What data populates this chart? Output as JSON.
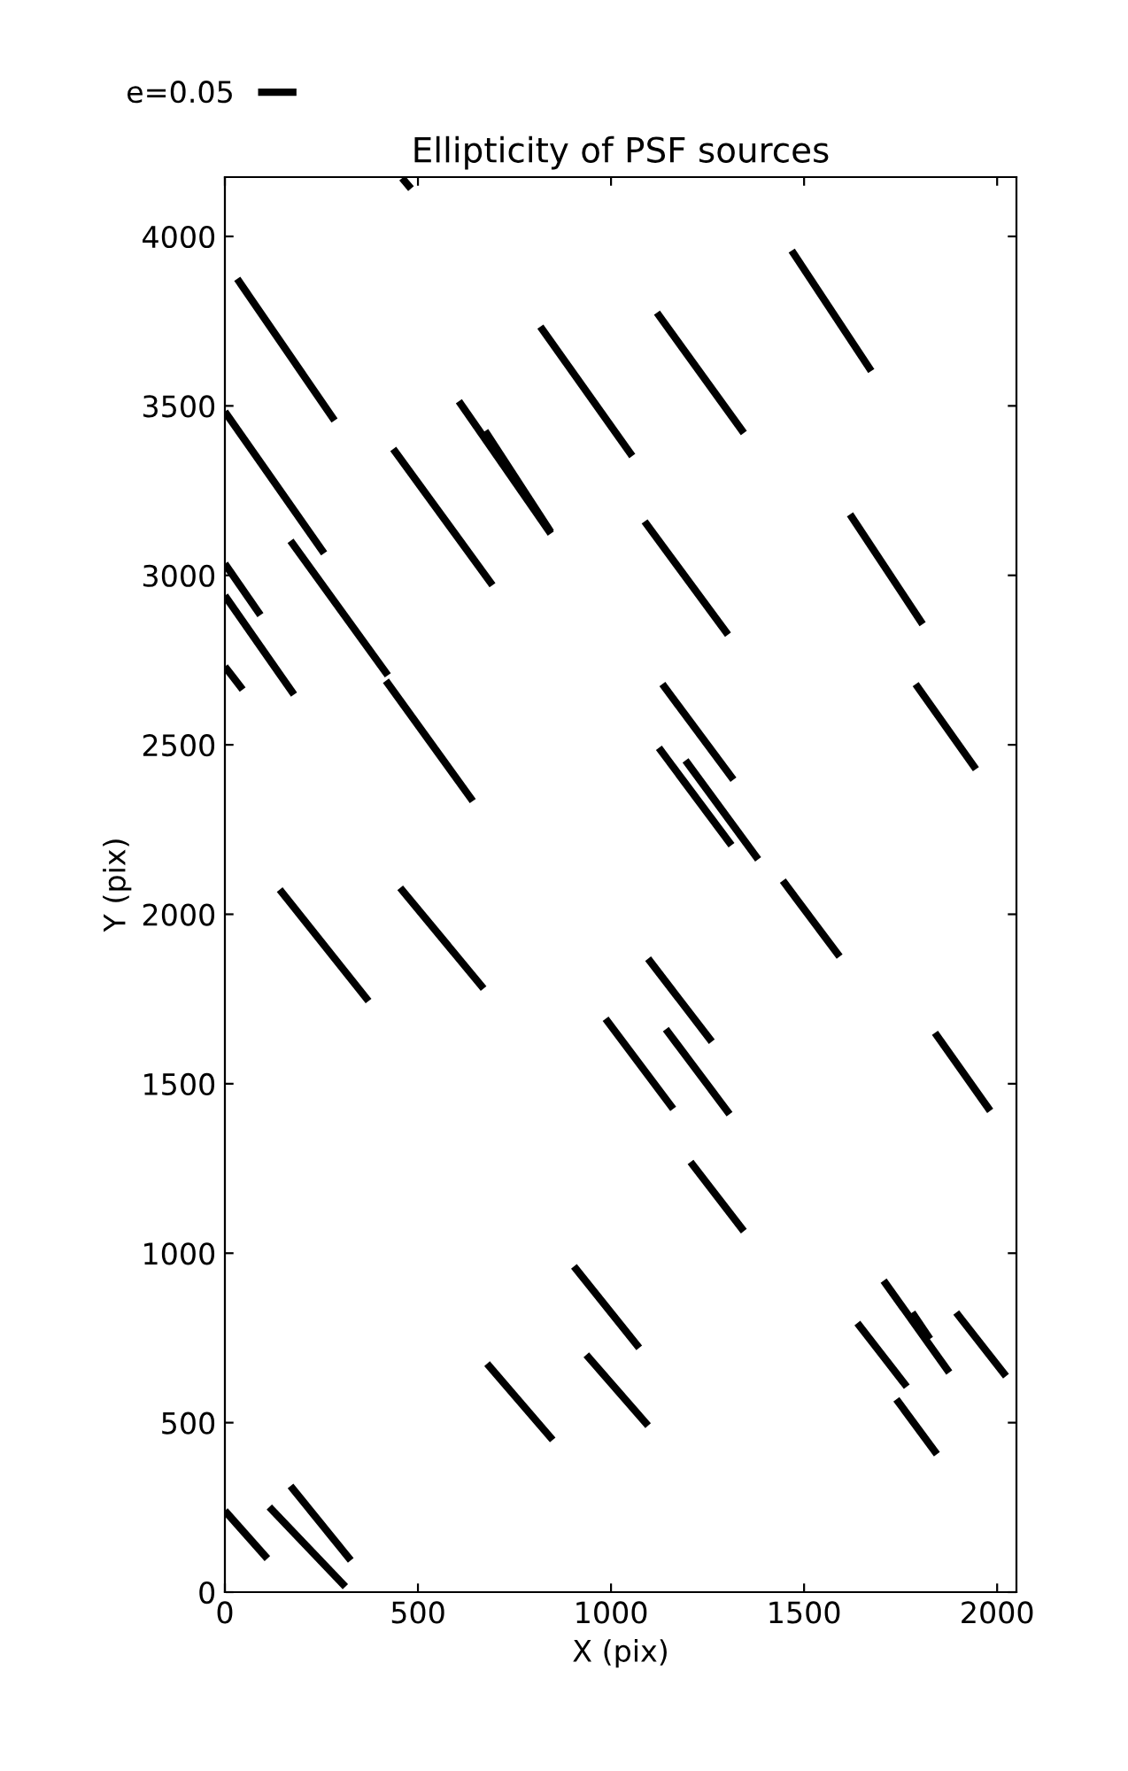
{
  "chart_data": {
    "type": "line",
    "title": "Ellipticity of PSF sources",
    "xlabel": "X (pix)",
    "ylabel": "Y (pix)",
    "xlim": [
      0,
      2050
    ],
    "ylim": [
      0,
      4175
    ],
    "xticks": [
      0,
      500,
      1000,
      1500,
      2000
    ],
    "yticks": [
      0,
      500,
      1000,
      1500,
      2000,
      2500,
      3000,
      3500,
      4000
    ],
    "grid": false,
    "legend": "top left",
    "marker": "none",
    "line_style": "solid",
    "series": [
      {
        "name": "e=0.05",
        "color": "#000000",
        "x": [
          459,
          482
        ],
        "values": [
          4172,
          4141
        ]
      },
      {
        "color": "#000000",
        "x": [
          32,
          284
        ],
        "values": [
          3875,
          3457
        ]
      },
      {
        "color": "#000000",
        "x": [
          0,
          257
        ],
        "values": [
          3483,
          3065
        ]
      },
      {
        "color": "#000000",
        "x": [
          817,
          1055
        ],
        "values": [
          3734,
          3352
        ]
      },
      {
        "color": "#000000",
        "x": [
          606,
          844
        ],
        "values": [
          3514,
          3123
        ]
      },
      {
        "color": "#000000",
        "x": [
          674,
          844
        ],
        "values": [
          3426,
          3128
        ]
      },
      {
        "color": "#000000",
        "x": [
          436,
          693
        ],
        "values": [
          3373,
          2971
        ]
      },
      {
        "color": "#000000",
        "x": [
          1119,
          1344
        ],
        "values": [
          3775,
          3420
        ]
      },
      {
        "color": "#000000",
        "x": [
          1468,
          1674
        ],
        "values": [
          3958,
          3603
        ]
      },
      {
        "color": "#000000",
        "x": [
          0,
          92
        ],
        "values": [
          3034,
          2883
        ]
      },
      {
        "color": "#000000",
        "x": [
          0,
          179
        ],
        "values": [
          2940,
          2648
        ]
      },
      {
        "color": "#000000",
        "x": [
          170,
          422
        ],
        "values": [
          3102,
          2705
        ]
      },
      {
        "color": "#000000",
        "x": [
          0,
          46
        ],
        "values": [
          2731,
          2663
        ]
      },
      {
        "color": "#000000",
        "x": [
          417,
          642
        ],
        "values": [
          2689,
          2334
        ]
      },
      {
        "color": "#000000",
        "x": [
          1087,
          1303
        ],
        "values": [
          3159,
          2825
        ]
      },
      {
        "color": "#000000",
        "x": [
          1619,
          1807
        ],
        "values": [
          3180,
          2856
        ]
      },
      {
        "color": "#000000",
        "x": [
          1133,
          1317
        ],
        "values": [
          2679,
          2397
        ]
      },
      {
        "color": "#000000",
        "x": [
          1124,
          1312
        ],
        "values": [
          2491,
          2204
        ]
      },
      {
        "color": "#000000",
        "x": [
          1193,
          1381
        ],
        "values": [
          2454,
          2162
        ]
      },
      {
        "color": "#000000",
        "x": [
          1789,
          1945
        ],
        "values": [
          2679,
          2428
        ]
      },
      {
        "color": "#000000",
        "x": [
          142,
          372
        ],
        "values": [
          2073,
          1744
        ]
      },
      {
        "color": "#000000",
        "x": [
          454,
          670
        ],
        "values": [
          2078,
          1781
        ]
      },
      {
        "color": "#000000",
        "x": [
          1445,
          1592
        ],
        "values": [
          2099,
          1875
        ]
      },
      {
        "color": "#000000",
        "x": [
          1096,
          1261
        ],
        "values": [
          1869,
          1624
        ]
      },
      {
        "color": "#000000",
        "x": [
          986,
          1161
        ],
        "values": [
          1692,
          1426
        ]
      },
      {
        "color": "#000000",
        "x": [
          1142,
          1307
        ],
        "values": [
          1661,
          1410
        ]
      },
      {
        "color": "#000000",
        "x": [
          1839,
          1982
        ],
        "values": [
          1650,
          1420
        ]
      },
      {
        "color": "#000000",
        "x": [
          1206,
          1344
        ],
        "values": [
          1269,
          1065
        ]
      },
      {
        "color": "#000000",
        "x": [
          904,
          1073
        ],
        "values": [
          961,
          721
        ]
      },
      {
        "color": "#000000",
        "x": [
          679,
          849
        ],
        "values": [
          674,
          449
        ]
      },
      {
        "color": "#000000",
        "x": [
          936,
          1096
        ],
        "values": [
          700,
          491
        ]
      },
      {
        "color": "#000000",
        "x": [
          1706,
          1876
        ],
        "values": [
          919,
          648
        ]
      },
      {
        "color": "#000000",
        "x": [
          1780,
          1826
        ],
        "values": [
          825,
          747
        ]
      },
      {
        "color": "#000000",
        "x": [
          1638,
          1766
        ],
        "values": [
          794,
          606
        ]
      },
      {
        "color": "#000000",
        "x": [
          1894,
          2023
        ],
        "values": [
          825,
          637
        ]
      },
      {
        "color": "#000000",
        "x": [
          1739,
          1844
        ],
        "values": [
          569,
          407
        ]
      },
      {
        "color": "#000000",
        "x": [
          0,
          110
        ],
        "values": [
          240,
          99
        ]
      },
      {
        "color": "#000000",
        "x": [
          115,
          312
        ],
        "values": [
          251,
          16
        ]
      },
      {
        "color": "#000000",
        "x": [
          170,
          326
        ],
        "values": [
          313,
          94
        ]
      }
    ]
  }
}
